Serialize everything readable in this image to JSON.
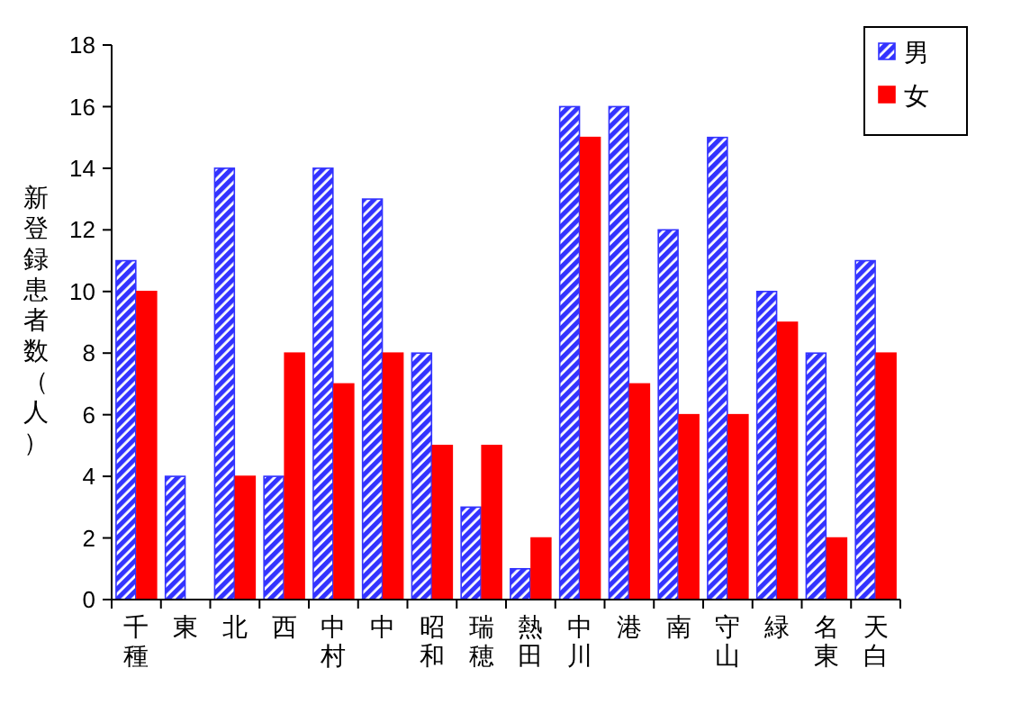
{
  "chart_data": {
    "type": "bar",
    "ylabel": "新登録患者数（人）",
    "categories": [
      "千種",
      "東",
      "北",
      "西",
      "中村",
      "中",
      "昭和",
      "瑞穂",
      "熱田",
      "中川",
      "港",
      "南",
      "守山",
      "緑",
      "名東",
      "天白"
    ],
    "series": [
      {
        "name": "男",
        "color": "#3333ff",
        "values": [
          11,
          4,
          14,
          4,
          14,
          13,
          8,
          3,
          1,
          16,
          16,
          12,
          15,
          10,
          8,
          11
        ]
      },
      {
        "name": "女",
        "color": "#ff0000",
        "values": [
          10,
          0,
          4,
          8,
          7,
          8,
          5,
          5,
          2,
          15,
          7,
          6,
          6,
          9,
          2,
          8
        ]
      }
    ],
    "ylim": [
      0,
      18
    ],
    "yticks": [
      0,
      2,
      4,
      6,
      8,
      10,
      12,
      14,
      16,
      18
    ],
    "grid": false,
    "legend": "top right"
  }
}
